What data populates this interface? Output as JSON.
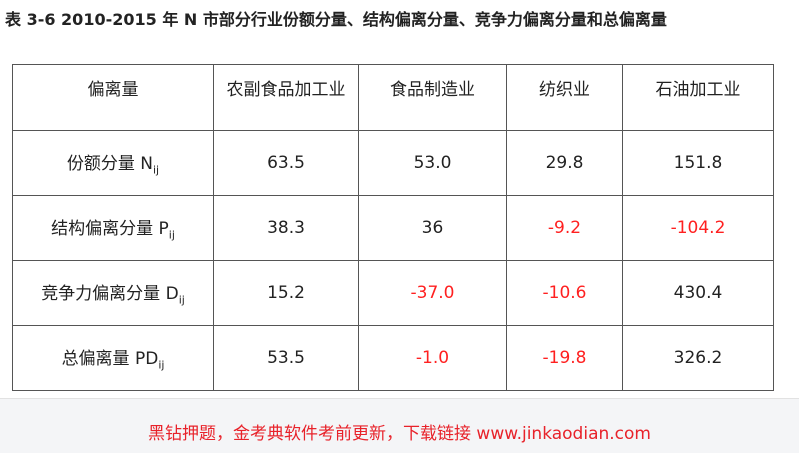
{
  "title": "表 3-6 2010-2015 年 N 市部分行业份额分量、结构偏离分量、竞争力偏离分量和总偏离量",
  "table": {
    "header": [
      "偏离量",
      "农副食品加工业",
      "食品制造业",
      "纺织业",
      "石油加工业"
    ],
    "rows": [
      {
        "label": {
          "text": "份额分量 N",
          "sub": "ij"
        },
        "cells": [
          "63.5",
          "53.0",
          "29.8",
          "151.8"
        ]
      },
      {
        "label": {
          "text": "结构偏离分量 P",
          "sub": "ij"
        },
        "cells": [
          "38.3",
          "36",
          "-9.2",
          "-104.2"
        ]
      },
      {
        "label": {
          "text": "竞争力偏离分量 D",
          "sub": "ij"
        },
        "cells": [
          "15.2",
          "-37.0",
          "-10.6",
          "430.4"
        ]
      },
      {
        "label": {
          "text": "总偏离量 PD",
          "sub": "ij"
        },
        "cells": [
          "53.5",
          "-1.0",
          "-19.8",
          "326.2"
        ]
      }
    ]
  },
  "footer": "黑钻押题，金考典软件考前更新，下载链接 www.jinkaodian.com"
}
